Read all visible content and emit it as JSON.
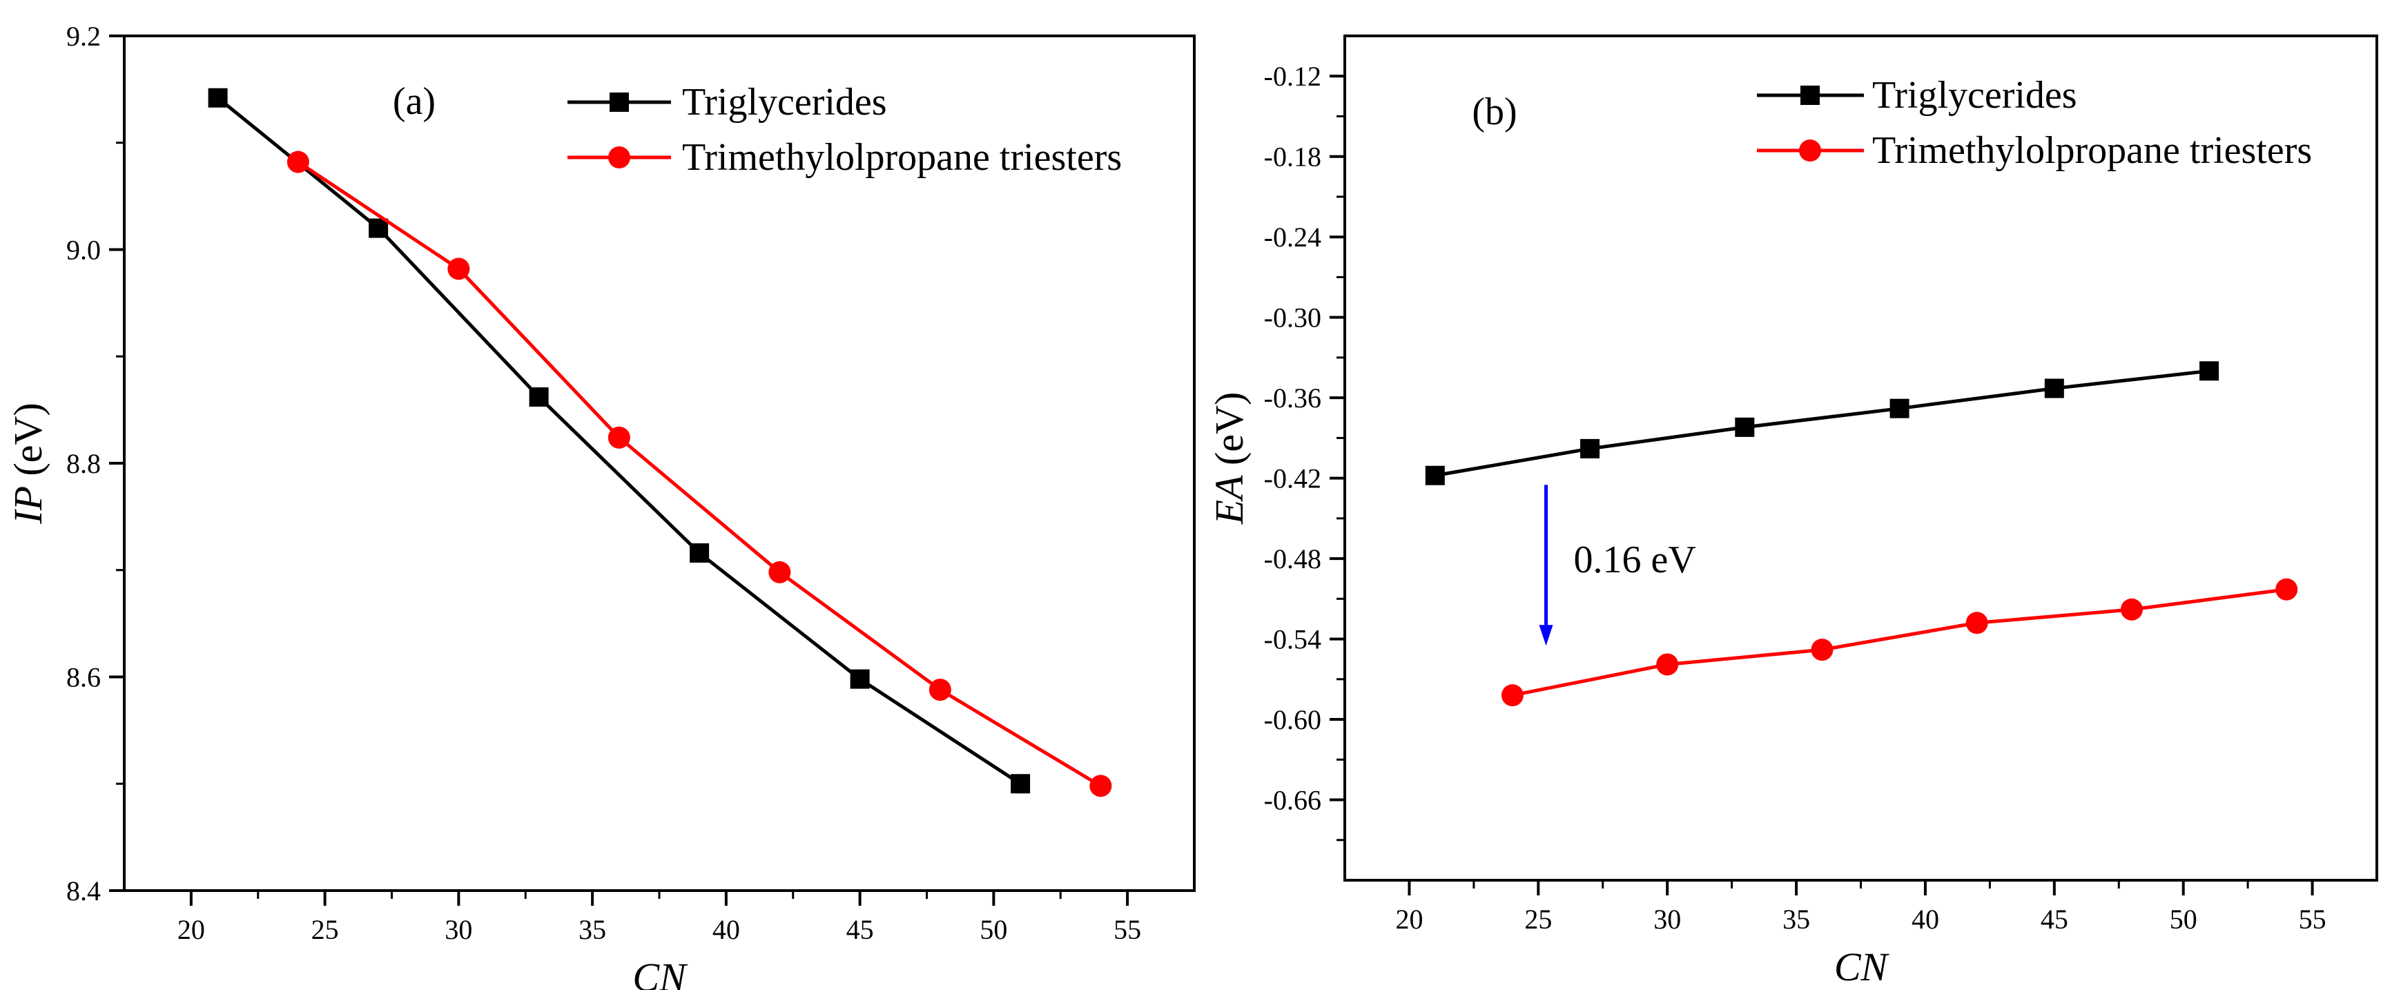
{
  "chart_data": [
    {
      "type": "line",
      "panel_label": "(a)",
      "xlabel": "CN",
      "ylabel_var": "IP",
      "ylabel_unit": " (eV)",
      "xlim": [
        17.5,
        57.5
      ],
      "ylim": [
        8.4,
        9.2
      ],
      "xticks": [
        20,
        25,
        30,
        35,
        40,
        45,
        50,
        55
      ],
      "xtick_labels": [
        "20",
        "25",
        "30",
        "35",
        "40",
        "45",
        "50",
        "55"
      ],
      "yticks": [
        8.4,
        8.6,
        8.8,
        9.0,
        9.2
      ],
      "ytick_labels": [
        "8.4",
        "8.6",
        "8.8",
        "9.0",
        "9.2"
      ],
      "legend_position": "top-right",
      "series": [
        {
          "name": "Triglycerides",
          "color": "#000000",
          "marker": "square",
          "x": [
            21,
            27,
            33,
            39,
            45,
            51
          ],
          "y": [
            9.142,
            9.02,
            8.862,
            8.716,
            8.598,
            8.5
          ]
        },
        {
          "name": "Trimethylolpropane triesters",
          "color": "#ff0000",
          "marker": "circle",
          "x": [
            24,
            30,
            36,
            42,
            48,
            54
          ],
          "y": [
            9.082,
            8.982,
            8.824,
            8.698,
            8.588,
            8.498
          ]
        }
      ]
    },
    {
      "type": "line",
      "panel_label": "(b)",
      "xlabel": "CN",
      "ylabel_var": "EA",
      "ylabel_unit": " (eV)",
      "xlim": [
        17.5,
        57.5
      ],
      "ylim": [
        -0.72,
        -0.09
      ],
      "xticks": [
        20,
        25,
        30,
        35,
        40,
        45,
        50,
        55
      ],
      "xtick_labels": [
        "20",
        "25",
        "30",
        "35",
        "40",
        "45",
        "50",
        "55"
      ],
      "yticks": [
        -0.66,
        -0.6,
        -0.54,
        -0.48,
        -0.42,
        -0.36,
        -0.3,
        -0.24,
        -0.18,
        -0.12
      ],
      "ytick_labels": [
        "-0.66",
        "-0.60",
        "-0.54",
        "-0.48",
        "-0.42",
        "-0.36",
        "-0.30",
        "-0.24",
        "-0.18",
        "-0.12"
      ],
      "legend_position": "top-right",
      "annotation": {
        "text": "0.16 eV",
        "arrow_x": 25.3,
        "arrow_from": -0.425,
        "arrow_to": -0.545,
        "color": "#0000ff"
      },
      "series": [
        {
          "name": "Triglycerides",
          "color": "#000000",
          "marker": "square",
          "x": [
            21,
            27,
            33,
            39,
            45,
            51
          ],
          "y": [
            -0.418,
            -0.398,
            -0.382,
            -0.368,
            -0.353,
            -0.34
          ]
        },
        {
          "name": "Trimethylolpropane triesters",
          "color": "#ff0000",
          "marker": "circle",
          "x": [
            24,
            30,
            36,
            42,
            48,
            54
          ],
          "y": [
            -0.582,
            -0.559,
            -0.548,
            -0.528,
            -0.518,
            -0.503
          ]
        }
      ]
    }
  ]
}
